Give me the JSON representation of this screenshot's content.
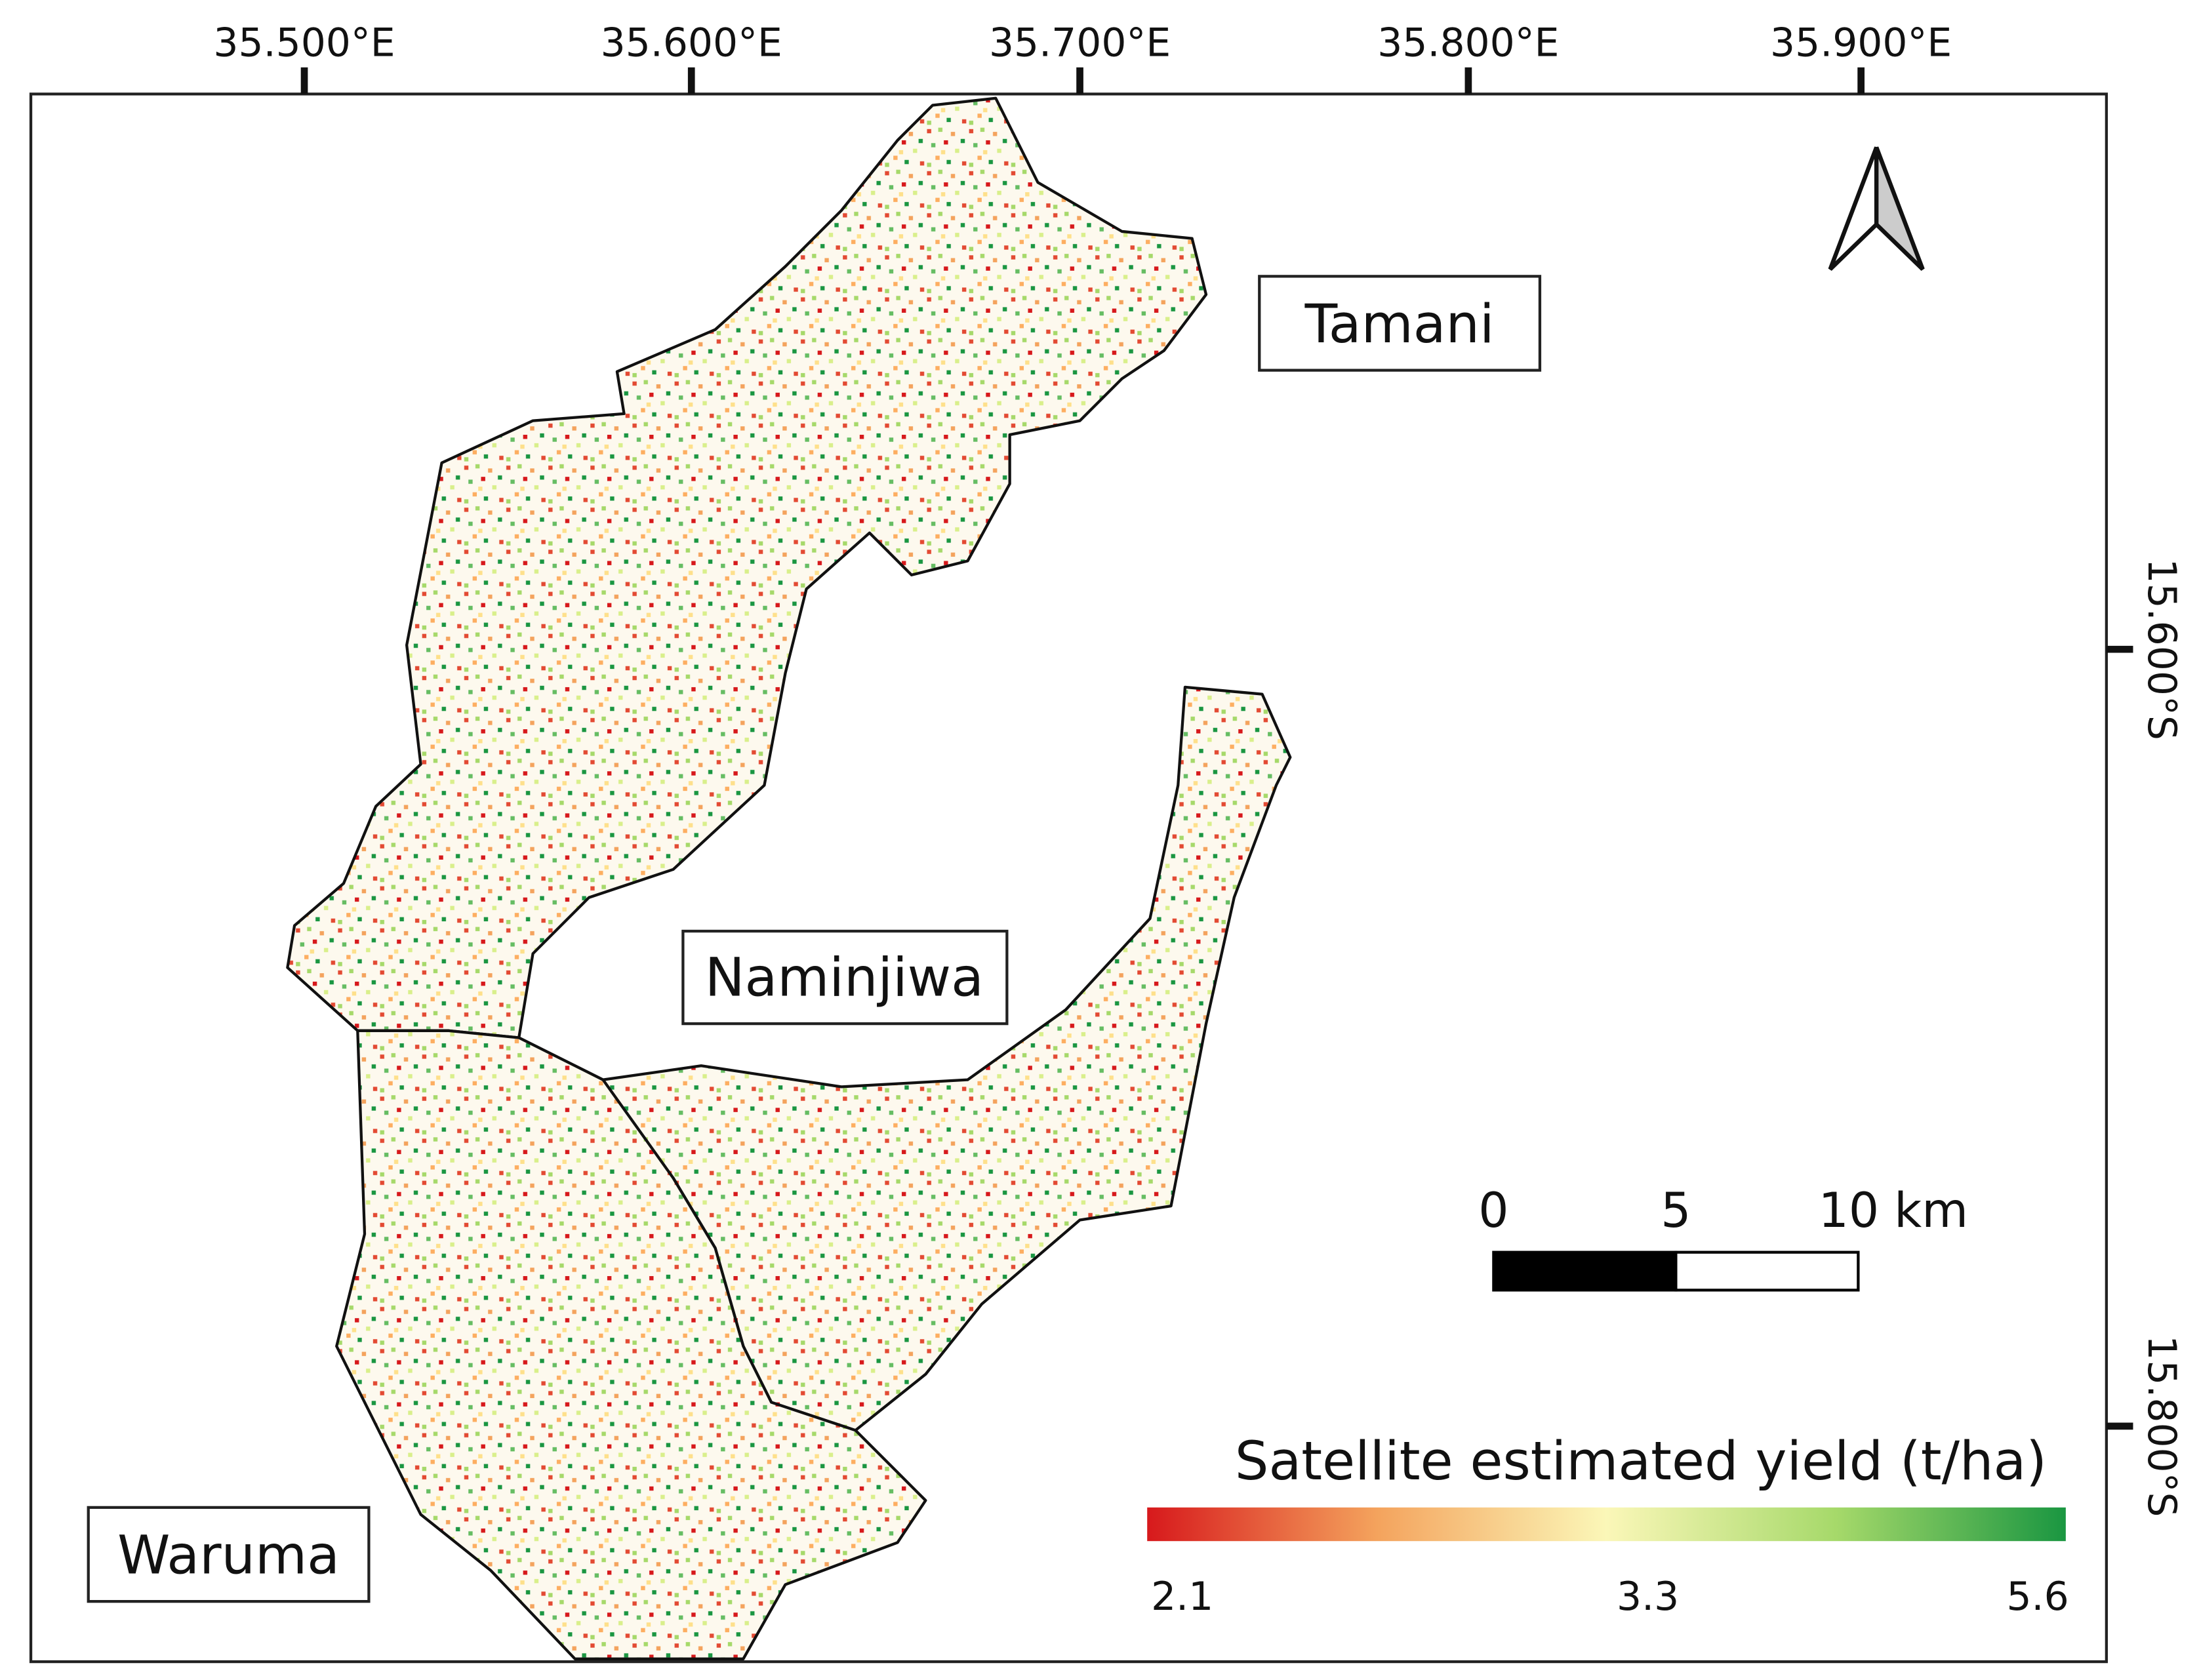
{
  "map": {
    "x_ticks": [
      "35.500°E",
      "35.600°E",
      "35.700°E",
      "35.800°E",
      "35.900°E"
    ],
    "y_ticks": [
      "15.600°S",
      "15.800°S"
    ],
    "places": [
      {
        "label": "Tamani"
      },
      {
        "label": "Naminjiwa"
      },
      {
        "label": "Waruma"
      }
    ],
    "scale_bar": {
      "labels": [
        "0",
        "5",
        "10 km"
      ]
    },
    "legend": {
      "title": "Satellite estimated yield (t/ha)",
      "ticks": [
        "2.1",
        "3.3",
        "5.6"
      ]
    }
  }
}
